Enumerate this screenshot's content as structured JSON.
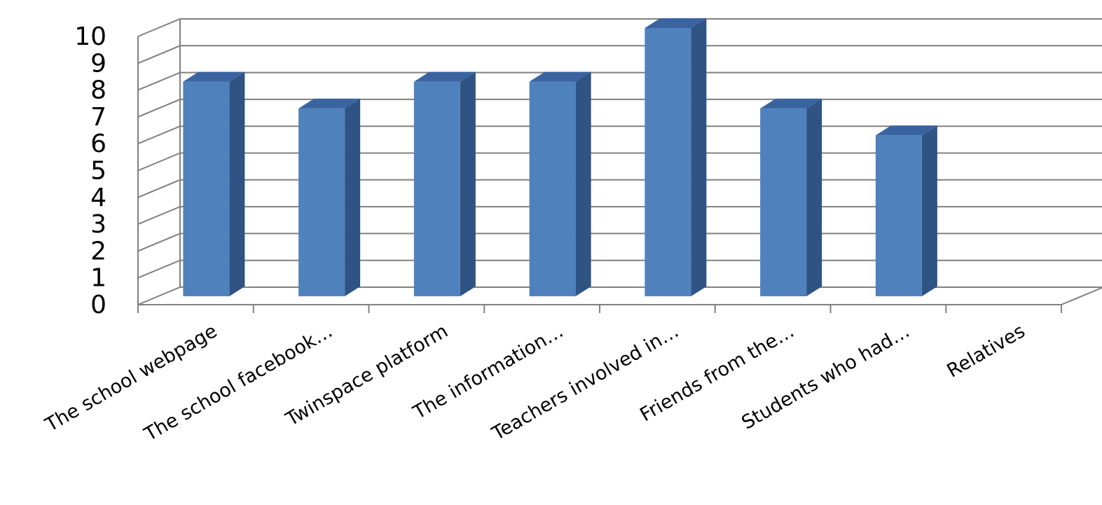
{
  "chart_data": {
    "type": "bar",
    "style": "3d-column",
    "categories": [
      "The school webpage",
      "The school facebook…",
      "Twinspace platform",
      "The information…",
      "Teachers involved in…",
      "Friends from the…",
      "Students who had…",
      "Relatives"
    ],
    "values": [
      8,
      7,
      8,
      8,
      10,
      7,
      6,
      0
    ],
    "title": "",
    "xlabel": "",
    "ylabel": "",
    "ylim": [
      0,
      10
    ],
    "yticks": [
      "0",
      "1",
      "2",
      "3",
      "4",
      "5",
      "6",
      "7",
      "8",
      "9",
      "10"
    ],
    "grid": true,
    "legend": "none"
  },
  "colors": {
    "bar_front": "#4f81bd",
    "bar_side": "#2f5484",
    "bar_top": "#3a64a0",
    "grid": "#808080"
  }
}
